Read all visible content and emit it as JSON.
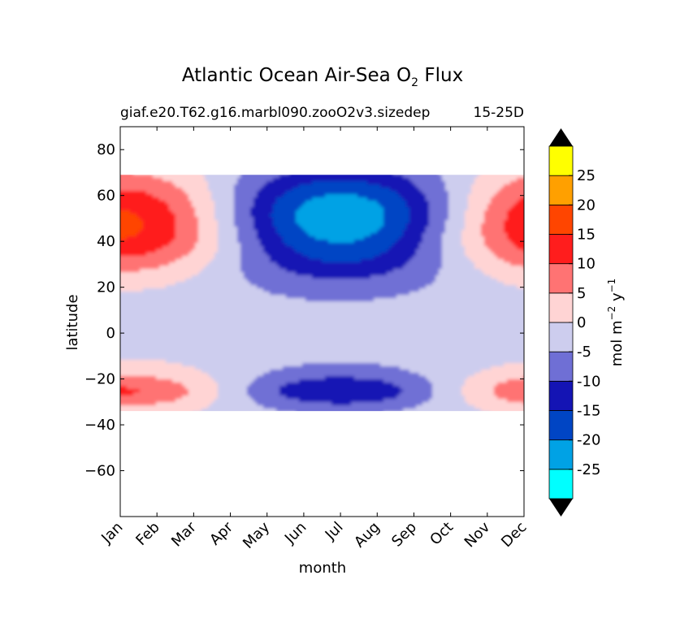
{
  "chart_data": {
    "type": "heatmap",
    "title": "Atlantic Ocean Air-Sea O",
    "title_sub": "2",
    "title_end": " Flux",
    "subtitle_left": "giaf.e20.T62.g16.marbl090.zooO2v3.sizedep",
    "subtitle_right": "15-25D",
    "xlabel": "month",
    "ylabel": "latitude",
    "x_ticks": [
      "Jan",
      "Feb",
      "Mar",
      "Apr",
      "May",
      "Jun",
      "Jul",
      "Aug",
      "Sep",
      "Oct",
      "Nov",
      "Dec"
    ],
    "ylim": [
      -80,
      90
    ],
    "y_ticks": [
      80,
      60,
      40,
      20,
      0,
      -20,
      -40,
      -60
    ],
    "y_tick_labels": [
      "80",
      "60",
      "40",
      "20",
      "0",
      "−20",
      "−40",
      "−60"
    ],
    "data_lat_range": [
      -34,
      69
    ],
    "colorbar": {
      "label": "mol m",
      "label_sup1": "−2",
      "label_mid": " y",
      "label_sup2": "−1",
      "extend": "both",
      "under_color": "#000000",
      "over_color": "#000000",
      "levels": [
        -30,
        -25,
        -20,
        -15,
        -10,
        -5,
        0,
        5,
        10,
        15,
        20,
        25,
        30
      ],
      "tick_values": [
        -25,
        -20,
        -15,
        -10,
        -5,
        0,
        5,
        10,
        15,
        20,
        25
      ],
      "tick_labels": [
        "-25",
        "-20",
        "-15",
        "-10",
        "-5",
        "0",
        "5",
        "10",
        "15",
        "20",
        "25"
      ],
      "colors": [
        "#00ffff",
        "#00a2e5",
        "#0045c4",
        "#1414b4",
        "#6f6fd5",
        "#cdcdee",
        "#ffd4d4",
        "#ff7373",
        "#ff1d1d",
        "#ff4500",
        "#ffa000",
        "#ffff00"
      ]
    }
  }
}
